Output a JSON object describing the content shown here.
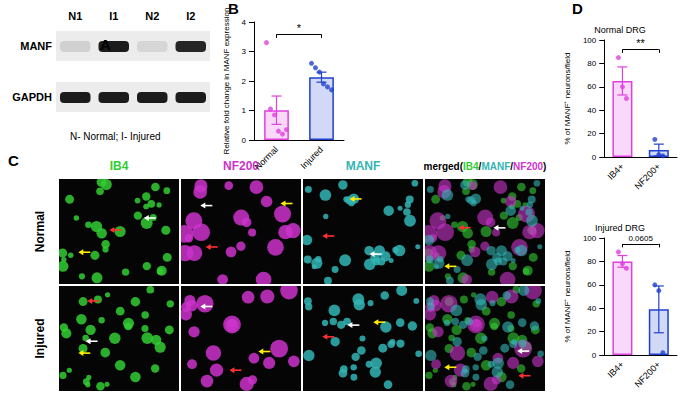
{
  "panels": {
    "A": {
      "panel_label": "A",
      "lanes": [
        "N1",
        "I1",
        "N2",
        "I2"
      ],
      "rows": [
        "MANF",
        "GAPDH"
      ],
      "band_intensity": [
        [
          0.12,
          0.95,
          0.1,
          0.9
        ],
        [
          0.95,
          0.95,
          0.95,
          0.95
        ]
      ],
      "caption": "N- Normal; I- Injured"
    },
    "C": {
      "panel_label": "C",
      "columns": [
        {
          "text": "IB4",
          "color": "#33cc33"
        },
        {
          "text": "NF200",
          "color": "#cc33cc"
        },
        {
          "text": "MANF",
          "color": "#33b5b5"
        }
      ],
      "merged": {
        "text": "merged",
        "parts": [
          {
            "text": "(",
            "color": "#000000"
          },
          {
            "text": "IB4",
            "color": "#33cc33"
          },
          {
            "text": "/",
            "color": "#000000"
          },
          {
            "text": "MANF",
            "color": "#33b5b5"
          },
          {
            "text": "/",
            "color": "#000000"
          },
          {
            "text": "NF200",
            "color": "#cc33cc"
          },
          {
            "text": ")",
            "color": "#000000"
          }
        ]
      },
      "rows": [
        "Normal",
        "Injured"
      ]
    }
  },
  "chart_data": [
    {
      "panel_label": "B",
      "type": "bar",
      "ylabel": "Relative fold change in MANF expression",
      "categories": [
        "Normal",
        "Injured"
      ],
      "values": [
        1.01,
        2.13
      ],
      "errors": [
        0.48,
        0.17
      ],
      "points": [
        [
          3.3,
          1.05,
          0.85,
          0.3,
          0.2,
          0.35
        ],
        [
          2.6,
          2.45,
          2.3,
          1.9,
          1.8,
          1.7
        ]
      ],
      "colors": [
        "#e040e0",
        "#2040d0"
      ],
      "annotation": "*",
      "ylim": [
        0,
        4
      ],
      "yticks": [
        0,
        1,
        2,
        3,
        4
      ],
      "grid": false
    },
    {
      "panel_label": "D",
      "type": "bar",
      "title": "Normal DRG",
      "ylabel": "% of MANF⁺ neurons/field",
      "categories": [
        "IB4+",
        "NF200+"
      ],
      "values": [
        65,
        6
      ],
      "errors": [
        12,
        5
      ],
      "points": [
        [
          85,
          60,
          50
        ],
        [
          15,
          2,
          1
        ]
      ],
      "colors": [
        "#e040e0",
        "#2040d0"
      ],
      "annotation": "**",
      "ylim": [
        0,
        100
      ],
      "yticks": [
        0,
        20,
        40,
        60,
        80,
        100
      ],
      "grid": false
    },
    {
      "type": "bar",
      "title": "Injured DRG",
      "ylabel": "% of MANF⁺ neurons/field",
      "categories": [
        "IB4+",
        "NF200+"
      ],
      "values": [
        80,
        39
      ],
      "errors": [
        5,
        20
      ],
      "points": [
        [
          88,
          78,
          74
        ],
        [
          60,
          55,
          2
        ]
      ],
      "colors": [
        "#e040e0",
        "#2040d0"
      ],
      "annotation": "0.0605",
      "ylim": [
        0,
        100
      ],
      "yticks": [
        0,
        20,
        40,
        60,
        80,
        100
      ],
      "grid": false
    }
  ]
}
